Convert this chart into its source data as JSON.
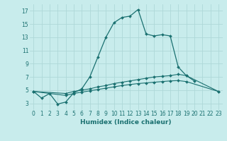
{
  "title": "",
  "xlabel": "Humidex (Indice chaleur)",
  "bg_color": "#c8ecec",
  "grid_color": "#aed8d8",
  "line_color": "#1a7070",
  "xlim": [
    -0.5,
    23.5
  ],
  "ylim": [
    2.0,
    18.0
  ],
  "xticks": [
    0,
    1,
    2,
    3,
    4,
    5,
    6,
    7,
    8,
    9,
    10,
    11,
    12,
    13,
    14,
    15,
    16,
    17,
    18,
    19,
    20,
    21,
    22,
    23
  ],
  "yticks": [
    3,
    5,
    7,
    9,
    11,
    13,
    15,
    17
  ],
  "line1_x": [
    0,
    1,
    2,
    3,
    4,
    5,
    6,
    7,
    8,
    9,
    10,
    11,
    12,
    13,
    14,
    15,
    16,
    17,
    18,
    19,
    20
  ],
  "line1_y": [
    4.8,
    3.8,
    4.5,
    2.9,
    3.2,
    4.6,
    5.2,
    7.0,
    10.0,
    13.0,
    15.2,
    16.0,
    16.2,
    17.2,
    13.5,
    13.2,
    13.4,
    13.2,
    8.5,
    7.2,
    6.4
  ],
  "line2_x": [
    0,
    4,
    5,
    6,
    7,
    8,
    9,
    10,
    11,
    12,
    13,
    14,
    15,
    16,
    17,
    18,
    19,
    23
  ],
  "line2_y": [
    4.8,
    4.5,
    4.8,
    5.0,
    5.2,
    5.5,
    5.7,
    6.0,
    6.2,
    6.4,
    6.6,
    6.8,
    7.0,
    7.1,
    7.2,
    7.4,
    7.2,
    4.8
  ],
  "line3_x": [
    0,
    4,
    5,
    6,
    7,
    8,
    9,
    10,
    11,
    12,
    13,
    14,
    15,
    16,
    17,
    18,
    19,
    23
  ],
  "line3_y": [
    4.8,
    4.2,
    4.5,
    4.7,
    4.9,
    5.1,
    5.3,
    5.5,
    5.7,
    5.85,
    6.0,
    6.1,
    6.2,
    6.3,
    6.4,
    6.45,
    6.3,
    4.8
  ]
}
